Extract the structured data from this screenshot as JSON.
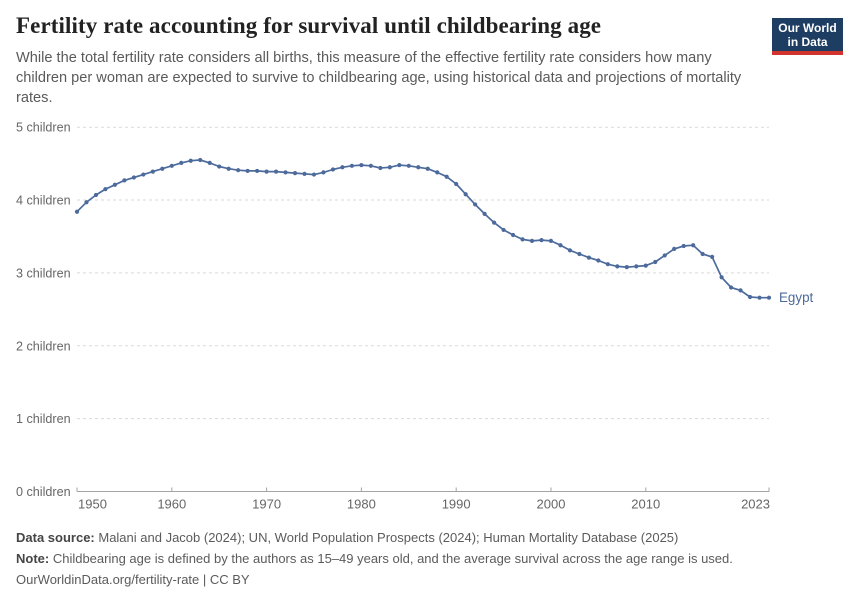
{
  "header": {
    "title": "Fertility rate accounting for survival until childbearing age",
    "subtitle": "While the total fertility rate considers all births, this measure of the effective fertility rate considers how many children per woman are expected to survive to childbearing age, using historical data and projections of mortality rates."
  },
  "logo": {
    "line1": "Our World",
    "line2": "in Data"
  },
  "chart_data": {
    "type": "line",
    "title": "Fertility rate accounting for survival until childbearing age",
    "ylim": [
      0,
      5
    ],
    "grid": "horizontal-dashed",
    "legend_position": "end-of-line-label",
    "line_color": "#4C6A9C",
    "y_tick_labels": [
      "0 children",
      "1 children",
      "2 children",
      "3 children",
      "4 children",
      "5 children"
    ],
    "x_ticks": [
      1950,
      1960,
      1970,
      1980,
      1990,
      2000,
      2010,
      2023
    ],
    "x": [
      1950,
      1951,
      1952,
      1953,
      1954,
      1955,
      1956,
      1957,
      1958,
      1959,
      1960,
      1961,
      1962,
      1963,
      1964,
      1965,
      1966,
      1967,
      1968,
      1969,
      1970,
      1971,
      1972,
      1973,
      1974,
      1975,
      1976,
      1977,
      1978,
      1979,
      1980,
      1981,
      1982,
      1983,
      1984,
      1985,
      1986,
      1987,
      1988,
      1989,
      1990,
      1991,
      1992,
      1993,
      1994,
      1995,
      1996,
      1997,
      1998,
      1999,
      2000,
      2001,
      2002,
      2003,
      2004,
      2005,
      2006,
      2007,
      2008,
      2009,
      2010,
      2011,
      2012,
      2013,
      2014,
      2015,
      2016,
      2017,
      2018,
      2019,
      2020,
      2021,
      2022,
      2023
    ],
    "series": [
      {
        "name": "Egypt",
        "values": [
          3.84,
          3.97,
          4.07,
          4.15,
          4.21,
          4.27,
          4.31,
          4.35,
          4.39,
          4.43,
          4.47,
          4.51,
          4.54,
          4.55,
          4.51,
          4.46,
          4.43,
          4.41,
          4.4,
          4.4,
          4.39,
          4.39,
          4.38,
          4.37,
          4.36,
          4.35,
          4.38,
          4.42,
          4.45,
          4.47,
          4.48,
          4.47,
          4.44,
          4.45,
          4.48,
          4.47,
          4.45,
          4.43,
          4.38,
          4.32,
          4.22,
          4.08,
          3.94,
          3.81,
          3.69,
          3.59,
          3.52,
          3.46,
          3.44,
          3.45,
          3.44,
          3.38,
          3.31,
          3.26,
          3.21,
          3.17,
          3.12,
          3.09,
          3.08,
          3.09,
          3.1,
          3.15,
          3.24,
          3.33,
          3.37,
          3.38,
          3.26,
          3.22,
          2.94,
          2.8,
          2.76,
          2.67,
          2.66,
          2.66
        ]
      }
    ],
    "end_label": "Egypt"
  },
  "footer": {
    "datasource_label": "Data source:",
    "datasource_text": " Malani and Jacob (2024); UN, World Population Prospects (2024); Human Mortality Database (2025)",
    "note_label": "Note:",
    "note_text": " Childbearing age is defined by the authors as 15–49 years old, and the average survival across the age range is used.",
    "license": "OurWorldinData.org/fertility-rate | CC BY"
  }
}
